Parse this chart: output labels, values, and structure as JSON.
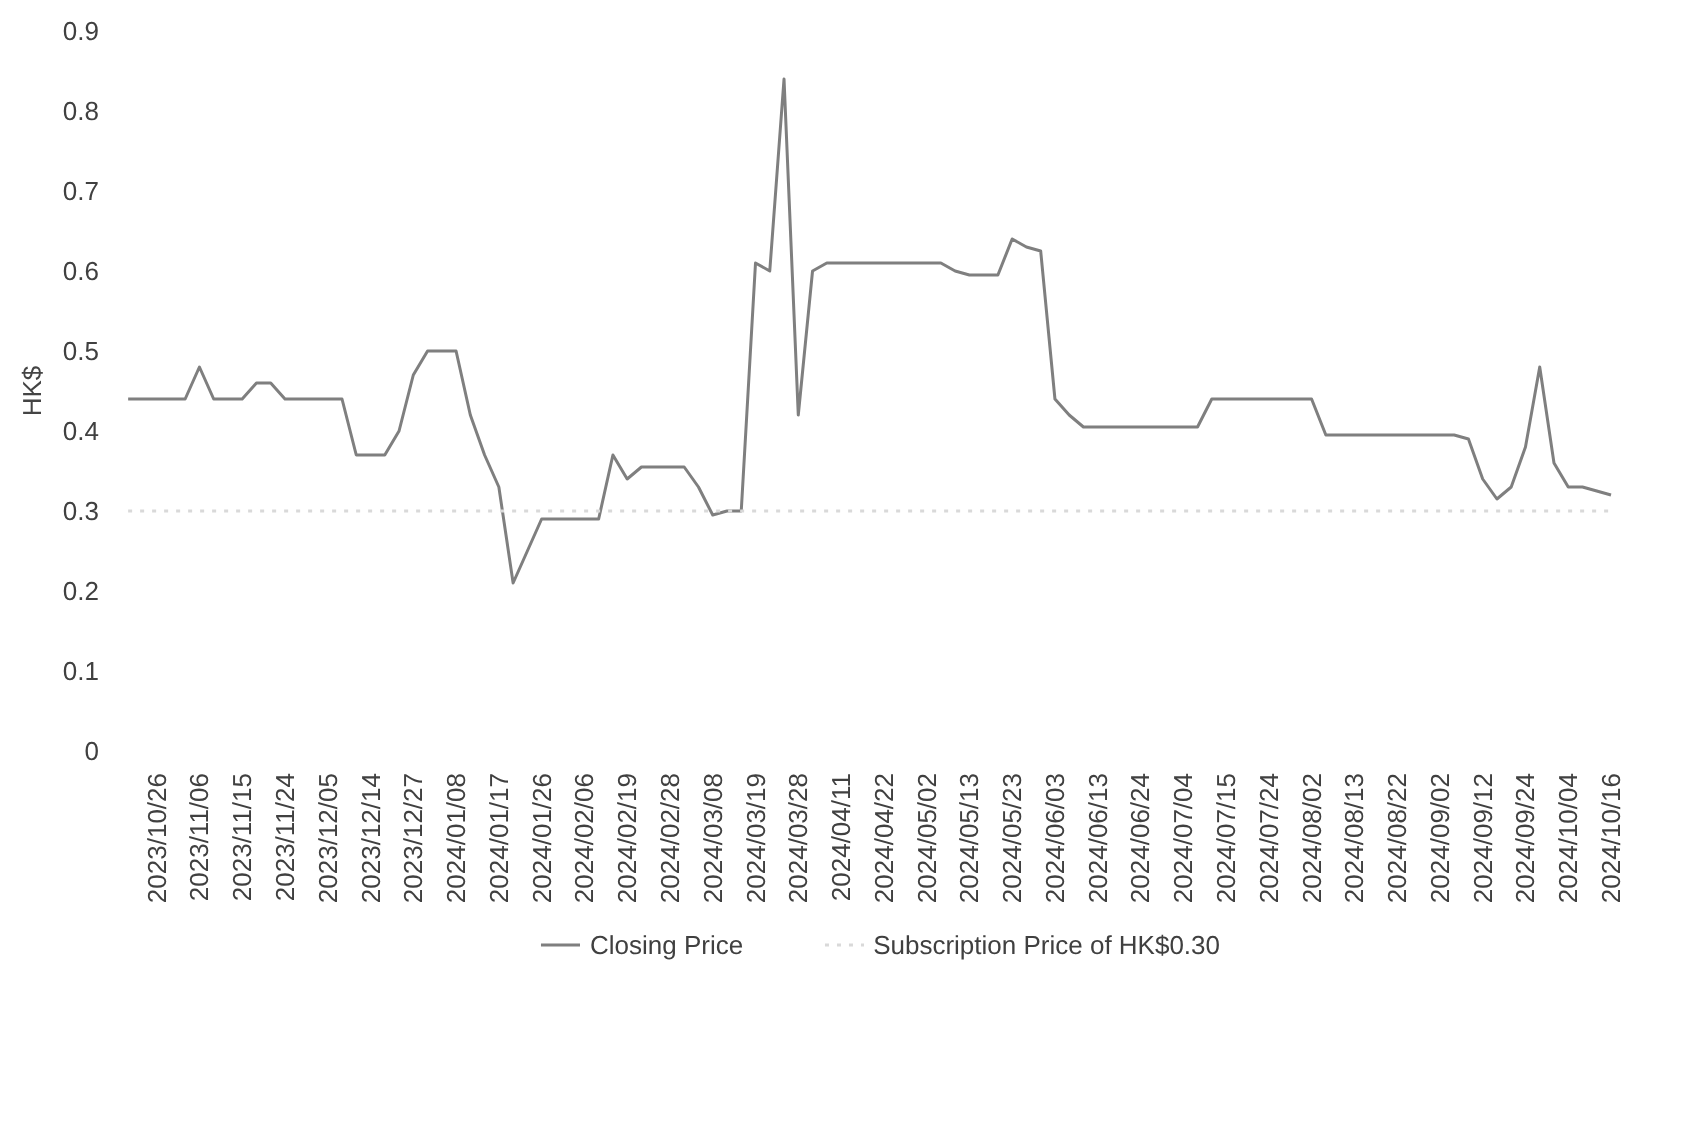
{
  "chart_data": {
    "type": "line",
    "ylabel": "HK$",
    "categories": [
      null,
      null,
      "2023/10/26",
      null,
      null,
      "2023/11/06",
      null,
      null,
      "2023/11/15",
      null,
      null,
      "2023/11/24",
      null,
      null,
      "2023/12/05",
      null,
      null,
      "2023/12/14",
      null,
      null,
      "2023/12/27",
      null,
      null,
      "2024/01/08",
      null,
      null,
      "2024/01/17",
      null,
      null,
      "2024/01/26",
      null,
      null,
      "2024/02/06",
      null,
      null,
      "2024/02/19",
      null,
      null,
      "2024/02/28",
      null,
      null,
      "2024/03/08",
      null,
      null,
      "2024/03/19",
      null,
      null,
      "2024/03/28",
      null,
      null,
      "2024/04/11",
      null,
      null,
      "2024/04/22",
      null,
      null,
      "2024/05/02",
      null,
      null,
      "2024/05/13",
      null,
      null,
      "2024/05/23",
      null,
      null,
      "2024/06/03",
      null,
      null,
      "2024/06/13",
      null,
      null,
      "2024/06/24",
      null,
      null,
      "2024/07/04",
      null,
      null,
      "2024/07/15",
      null,
      null,
      "2024/07/24",
      null,
      null,
      "2024/08/02",
      null,
      null,
      "2024/08/13",
      null,
      null,
      "2024/08/22",
      null,
      null,
      "2024/09/02",
      null,
      null,
      "2024/09/12",
      null,
      null,
      "2024/09/24",
      null,
      null,
      "2024/10/04",
      null,
      null,
      "2024/10/16"
    ],
    "series": [
      {
        "name": "Closing Price",
        "color": "#7f7f7f",
        "line_style": "solid",
        "values": [
          0.44,
          0.44,
          0.44,
          0.44,
          0.44,
          0.48,
          0.44,
          0.44,
          0.44,
          0.46,
          0.46,
          0.44,
          0.44,
          0.44,
          0.44,
          0.44,
          0.37,
          0.37,
          0.37,
          0.4,
          0.47,
          0.5,
          0.5,
          0.5,
          0.42,
          0.37,
          0.33,
          0.21,
          0.25,
          0.29,
          0.29,
          0.29,
          0.29,
          0.29,
          0.37,
          0.34,
          0.355,
          0.355,
          0.355,
          0.355,
          0.33,
          0.295,
          0.3,
          0.3,
          0.61,
          0.6,
          0.84,
          0.42,
          0.6,
          0.61,
          0.61,
          0.61,
          0.61,
          0.61,
          0.61,
          0.61,
          0.61,
          0.61,
          0.6,
          0.595,
          0.595,
          0.595,
          0.64,
          0.63,
          0.625,
          0.44,
          0.42,
          0.405,
          0.405,
          0.405,
          0.405,
          0.405,
          0.405,
          0.405,
          0.405,
          0.405,
          0.44,
          0.44,
          0.44,
          0.44,
          0.44,
          0.44,
          0.44,
          0.44,
          0.395,
          0.395,
          0.395,
          0.395,
          0.395,
          0.395,
          0.395,
          0.395,
          0.395,
          0.395,
          0.39,
          0.34,
          0.315,
          0.33,
          0.38,
          0.48,
          0.36,
          0.33,
          0.33,
          0.325,
          0.32
        ]
      },
      {
        "name": "Subscription Price of HK$0.30",
        "color": "#d9d9d9",
        "line_style": "dotted",
        "values": [
          0.3,
          0.3,
          0.3,
          0.3,
          0.3,
          0.3,
          0.3,
          0.3,
          0.3,
          0.3,
          0.3,
          0.3,
          0.3,
          0.3,
          0.3,
          0.3,
          0.3,
          0.3,
          0.3,
          0.3,
          0.3,
          0.3,
          0.3,
          0.3,
          0.3,
          0.3,
          0.3,
          0.3,
          0.3,
          0.3,
          0.3,
          0.3,
          0.3,
          0.3,
          0.3,
          0.3,
          0.3,
          0.3,
          0.3,
          0.3,
          0.3,
          0.3,
          0.3,
          0.3,
          0.3,
          0.3,
          0.3,
          0.3,
          0.3,
          0.3,
          0.3,
          0.3,
          0.3,
          0.3,
          0.3,
          0.3,
          0.3,
          0.3,
          0.3,
          0.3,
          0.3,
          0.3,
          0.3,
          0.3,
          0.3,
          0.3,
          0.3,
          0.3,
          0.3,
          0.3,
          0.3,
          0.3,
          0.3,
          0.3,
          0.3,
          0.3,
          0.3,
          0.3,
          0.3,
          0.3,
          0.3,
          0.3,
          0.3,
          0.3,
          0.3,
          0.3,
          0.3,
          0.3,
          0.3,
          0.3,
          0.3,
          0.3,
          0.3,
          0.3,
          0.3,
          0.3,
          0.3,
          0.3,
          0.3,
          0.3,
          0.3,
          0.3,
          0.3,
          0.3,
          0.3
        ]
      }
    ],
    "ylim": [
      0,
      0.9
    ],
    "yticks": [
      0,
      0.1,
      0.2,
      0.3,
      0.4,
      0.5,
      0.6,
      0.7,
      0.8,
      0.9
    ],
    "grid": false,
    "legend": "bottom",
    "marker": "none"
  }
}
